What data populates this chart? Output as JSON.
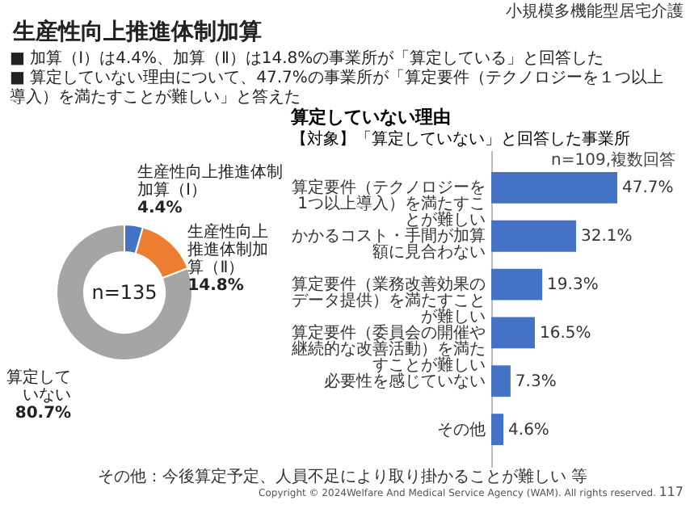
{
  "chart_data": [
    {
      "type": "donut",
      "title": "生産性向上推進体制加算",
      "categories": [
        "生産性向上推進体制加算（Ⅰ）",
        "生産性向上推進体制加算（Ⅱ）",
        "算定していない"
      ],
      "values": [
        4.4,
        14.8,
        80.7
      ],
      "value_labels": [
        "4.4%",
        "14.8%",
        "80.7%"
      ],
      "colors": [
        "#4472c4",
        "#ed7d31",
        "#a5a5a5"
      ],
      "annotations": [
        "小規模多機能型居宅介護",
        "■ 加算（Ⅰ）は4.4%、加算（Ⅱ）は14.8%の事業所が「算定している」と回答した",
        "■ 算定していない理由について、47.7%の事業所が「算定要件（テクノロジーを１つ以上導入）を満たすことが難しい」と答えた",
        "n=135",
        "Copyright © 2024Welfare And Medical Service Agency (WAM). All rights reserved.",
        "117"
      ]
    },
    {
      "type": "bar",
      "orientation": "horizontal",
      "title": "算定していない理由",
      "subtitle": "【対象】「算定していない」と回答した事業所",
      "categories": [
        "算定要件（テクノロジーを1つ以上導入）を満たすことが難しい",
        "かかるコスト・手間が加算額に見合わない",
        "算定要件（業務改善効果のデータ提供）を満たすことが難しい",
        "算定要件（委員会の開催や継続的な改善活動）を満たすことが難しい",
        "必要性を感じていない",
        "その他"
      ],
      "values": [
        47.7,
        32.1,
        19.3,
        16.5,
        7.3,
        4.6
      ],
      "value_labels": [
        "47.7%",
        "32.1%",
        "19.3%",
        "16.5%",
        "7.3%",
        "4.6%"
      ],
      "color": "#4472c4",
      "annotations": [
        "n=109,複数回答",
        "その他：今後算定予定、人員不足により取り掛かることが難しい 等"
      ]
    }
  ]
}
